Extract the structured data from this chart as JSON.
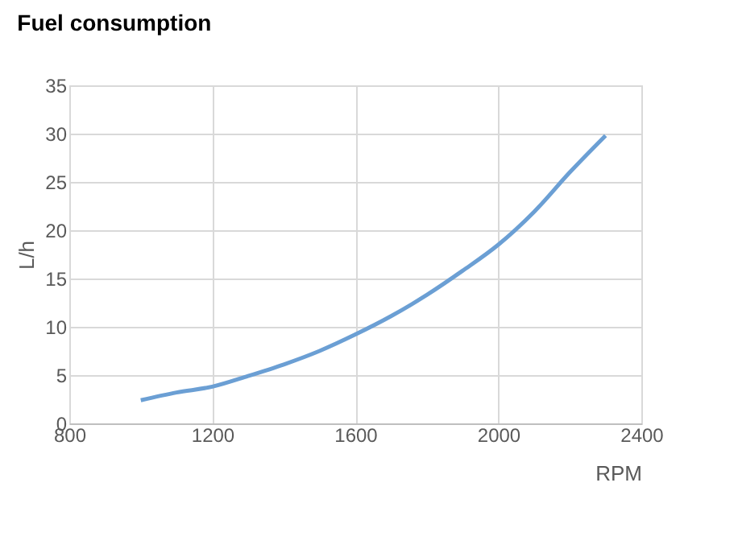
{
  "chart_data": {
    "type": "line",
    "title": "Fuel consumption",
    "xlabel": "RPM",
    "ylabel": "L/h",
    "x": [
      1000,
      1100,
      1200,
      1300,
      1400,
      1500,
      1600,
      1700,
      1800,
      1900,
      2000,
      2100,
      2200,
      2300
    ],
    "series": [
      {
        "color": "#6b9fd4",
        "values": [
          2.4,
          3.2,
          3.8,
          4.9,
          6.1,
          7.5,
          9.2,
          11.1,
          13.3,
          15.8,
          18.5,
          21.9,
          26.0,
          29.8
        ]
      }
    ],
    "xlim": [
      800,
      2400
    ],
    "xticks": [
      800,
      1200,
      1600,
      2000,
      2400
    ],
    "ylim": [
      0,
      35
    ],
    "yticks": [
      0,
      5,
      10,
      15,
      20,
      25,
      30,
      35
    ],
    "grid": true,
    "marker": "none",
    "line_style": "solid"
  }
}
